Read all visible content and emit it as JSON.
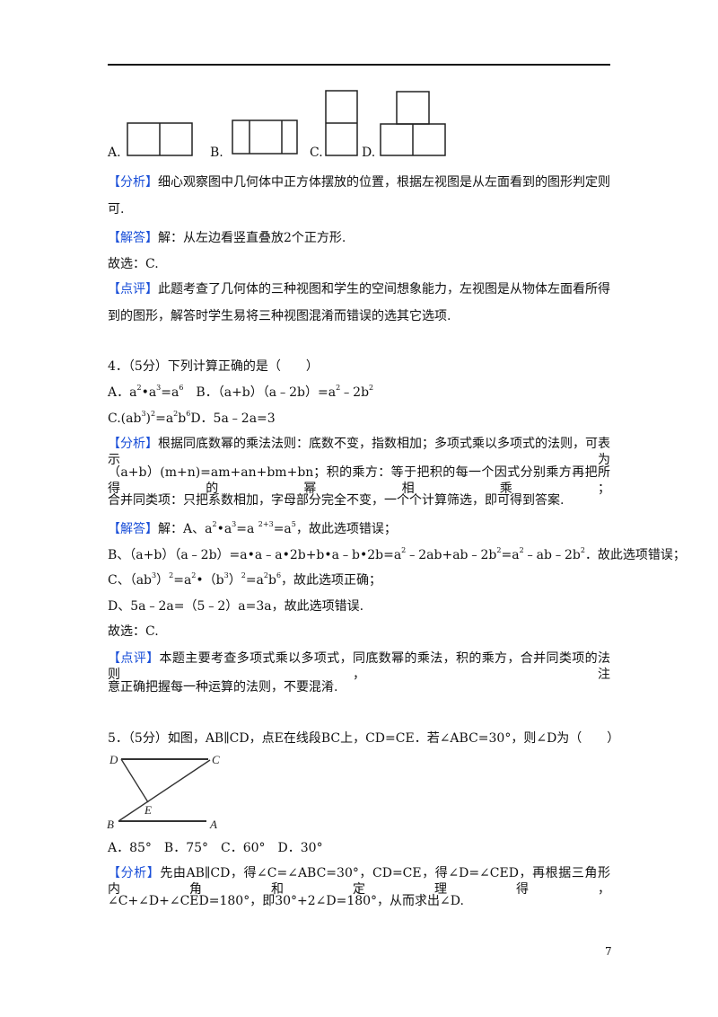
{
  "q3_options": {
    "a": "A.",
    "b": "B.",
    "c": "C.",
    "d": "D."
  },
  "lines": [
    {
      "tag": "【分析】",
      "justify": true,
      "segs": [
        "细心观察图中几何体中正方体摆放的位置，根据左视图是从左面看到的图形判定则"
      ]
    },
    {
      "segs": [
        "可."
      ]
    },
    {
      "tag": "【解答】",
      "segs": [
        "解：从左边看竖直叠放2个正方形."
      ]
    },
    {
      "segs": [
        "故选：C."
      ]
    },
    {
      "tag": "【点评】",
      "justify": true,
      "segs": [
        "此题考查了几何体的三种视图和学生的空间想象能力，左视图是从物体左面看所得"
      ]
    },
    {
      "segs": [
        "到的图形，解答时学生易将三种视图混淆而错误的选其它选项."
      ]
    },
    {
      "segs": [
        "4．（5分）下列计算正确的是（　　）"
      ]
    },
    {
      "segs": [
        "A．a",
        {
          "sup": "2"
        },
        "•a",
        {
          "sup": "3"
        },
        "=a",
        {
          "sup": "6"
        },
        "　B．（a+b）（a﹣2b）=a",
        {
          "sup": "2"
        },
        "﹣2b",
        {
          "sup": "2"
        }
      ]
    },
    {
      "segs": [
        "C.(ab",
        {
          "sup": "3"
        },
        ")",
        {
          "sup": "2"
        },
        "=a",
        {
          "sup": "2"
        },
        "b",
        {
          "sup": "6"
        },
        "D．5a﹣2a=3"
      ]
    },
    {
      "tag": "【分析】",
      "justify": true,
      "segs": [
        "根据同底数幂的乘法法则：底数不变，指数相加；多项式乘以多项式的法则，可表示为"
      ]
    },
    {
      "justify": true,
      "segs": [
        "（a+b）(m+n)=am+an+bm+bn；积的乘方：等于把积的每一个因式分别乘方再把所得的幂相乘；"
      ]
    },
    {
      "segs": [
        "合并同类项：只把系数相加，字母部分完全不变，一个个计算筛选，即可得到答案."
      ]
    },
    {
      "tag": "【解答】",
      "segs": [
        "解：A、a",
        {
          "sup": "2"
        },
        "•a",
        {
          "sup": "3"
        },
        "=a ",
        {
          "sup": "2+3"
        },
        "=a",
        {
          "sup": "5"
        },
        "，故此选项错误；"
      ]
    },
    {
      "segs": [
        "B、（a+b）（a﹣2b）=a•a﹣a•2b+b•a﹣b•2b=a",
        {
          "sup": "2"
        },
        "﹣2ab+ab﹣2b",
        {
          "sup": "2"
        },
        "=a",
        {
          "sup": "2"
        },
        "﹣ab﹣2b",
        {
          "sup": "2"
        },
        "．故此选项错误；"
      ]
    },
    {
      "segs": [
        "C、（ab",
        {
          "sup": "3"
        },
        "）",
        {
          "sup": "2"
        },
        "=a",
        {
          "sup": "2"
        },
        "•（b",
        {
          "sup": "3"
        },
        "）",
        {
          "sup": "2"
        },
        "=a",
        {
          "sup": "2"
        },
        "b",
        {
          "sup": "6"
        },
        "，故此选项正确；"
      ]
    },
    {
      "segs": [
        "D、5a﹣2a=（5﹣2）a=3a，故此选项错误."
      ]
    },
    {
      "segs": [
        "故选：C."
      ]
    },
    {
      "tag": "【点评】",
      "justify": true,
      "segs": [
        "本题主要考查多项式乘以多项式，同底数幂的乘法，积的乘方，合并同类项的法则，注"
      ]
    },
    {
      "segs": [
        "意正确把握每一种运算的法则，不要混淆."
      ]
    },
    {
      "segs": [
        "5．（5分）如图，AB∥CD，点E在线段BC上，CD=CE．若∠ABC=30°，则∠D为（　　）"
      ]
    },
    {
      "segs": [
        "A．85°　B．75°　C．60°　D．30°"
      ]
    },
    {
      "tag": "【分析】",
      "justify": true,
      "segs": [
        "先由AB∥CD，得∠C=∠ABC=30°，CD=CE，得∠D=∠CED，再根据三角形内角和定理得，"
      ]
    },
    {
      "segs": [
        "∠C+∠D+∠CED=180°，即30°+2∠D=180°，从而求出∠D."
      ]
    }
  ],
  "figure_labels": {
    "d": "D",
    "c": "C",
    "e": "E",
    "b": "B",
    "a": "A"
  },
  "page_number": "7",
  "colors": {
    "tag": "#1a4fd8"
  }
}
